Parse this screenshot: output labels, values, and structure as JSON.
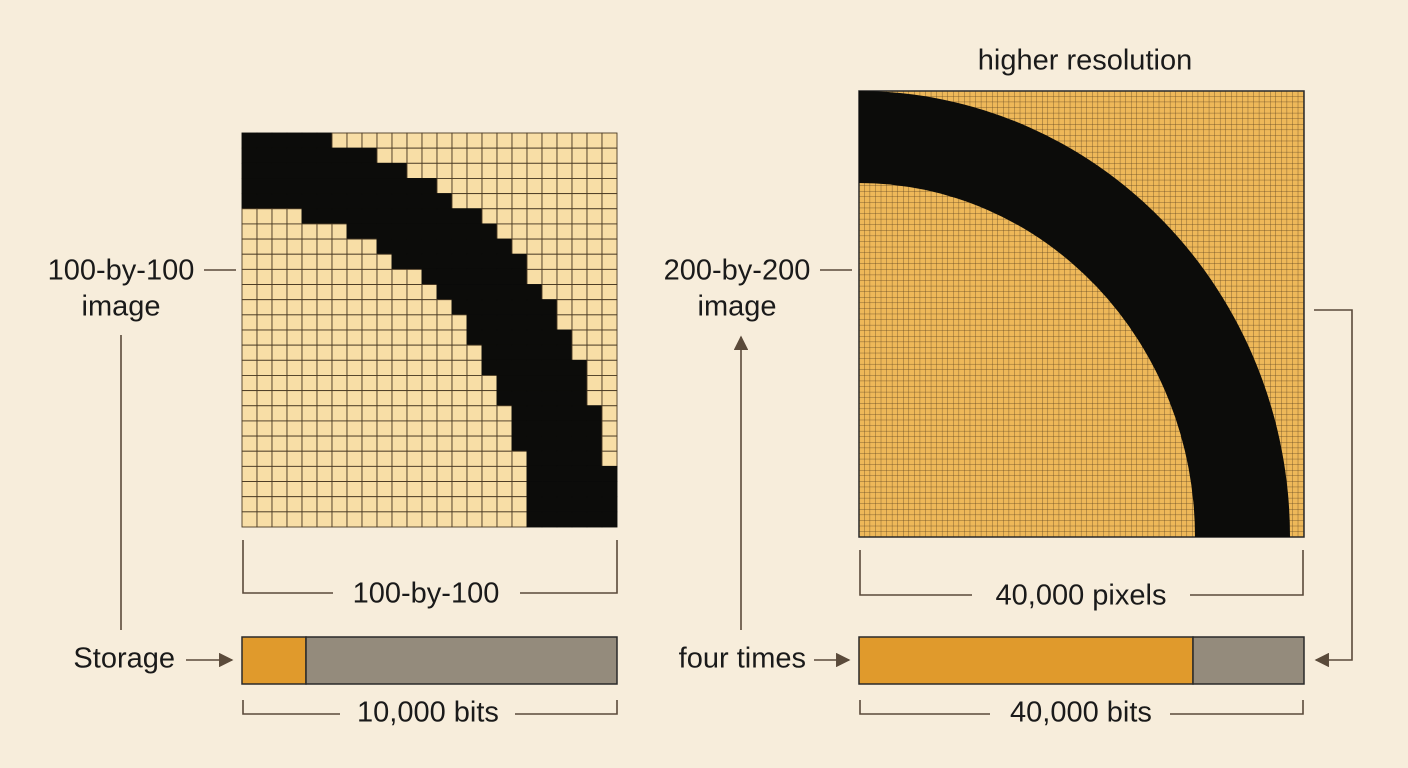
{
  "title": "higher resolution",
  "left": {
    "image_label": [
      "100-by-100",
      "image"
    ],
    "size_label": "100-by-100",
    "storage_label": "Storage",
    "bits_label": "10,000 bits"
  },
  "right": {
    "image_label": [
      "200-by-200",
      "image"
    ],
    "size_label": "40,000 pixels",
    "storage_label": "four times",
    "bits_label": "40,000 bits"
  }
}
